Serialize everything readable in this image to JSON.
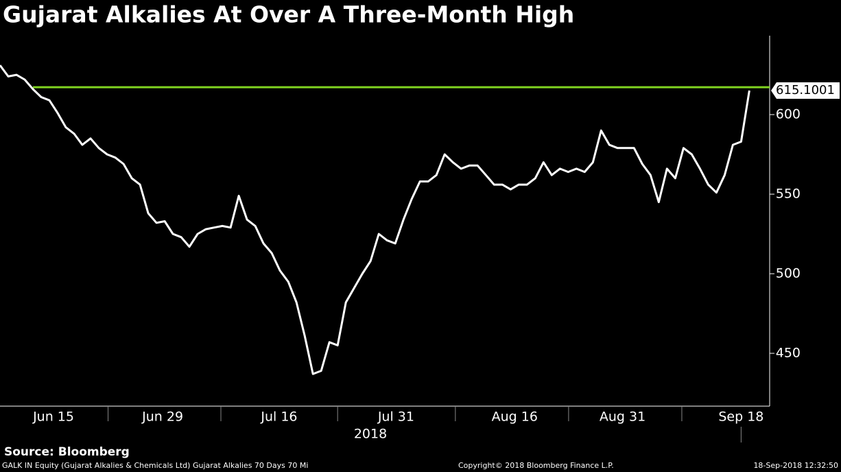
{
  "chart_data": {
    "type": "line",
    "title": "Gujarat Alkalies At Over A Three-Month High",
    "color": "#ffffff",
    "values": [
      631,
      624,
      625,
      622,
      616,
      611,
      609,
      601,
      592,
      588,
      581,
      585,
      579,
      575,
      573,
      569,
      560,
      556,
      538,
      532,
      533,
      525,
      523,
      517,
      525,
      528,
      529,
      530,
      529,
      549,
      534,
      530,
      519,
      513,
      502,
      495,
      482,
      461,
      437,
      439,
      457,
      455,
      482,
      491,
      500,
      508,
      525,
      521,
      519,
      534,
      547,
      558,
      558,
      562,
      575,
      570,
      566,
      568,
      568,
      562,
      556,
      556,
      553,
      556,
      556,
      560,
      570,
      562,
      566,
      564,
      566,
      564,
      570,
      590,
      581,
      579,
      579,
      579,
      569,
      562,
      545,
      566,
      560,
      579,
      575,
      566,
      556,
      551,
      562,
      581,
      583,
      615.1001
    ],
    "last_label": "615.1001",
    "reference_line": {
      "value": 617.2,
      "x_start": 4,
      "color": "#7fd320"
    },
    "xlim": [
      0,
      93.3
    ],
    "xticks": [
      {
        "value": 6.5,
        "label": "Jun 15"
      },
      {
        "value": 19.75,
        "label": "Jun 29"
      },
      {
        "value": 33.9,
        "label": "Jul 16"
      },
      {
        "value": 48.1,
        "label": "Jul 31"
      },
      {
        "value": 62.5,
        "label": "Aug 16"
      },
      {
        "value": 75.6,
        "label": "Aug 31"
      },
      {
        "value": 90,
        "label": "Sep 18"
      }
    ],
    "year_label": "2018",
    "ylim": [
      416.8,
      649.6
    ],
    "yticks": [
      450,
      500,
      550,
      600
    ],
    "source": "Source: Bloomberg",
    "footer_left": "GALK IN Equity (Gujarat Alkalies & Chemicals Ltd) Gujarat Alkalies 70 Days 70 Mi",
    "footer_center": "Copyright© 2018 Bloomberg Finance L.P.",
    "footer_right": "18-Sep-2018 12:32:50"
  }
}
